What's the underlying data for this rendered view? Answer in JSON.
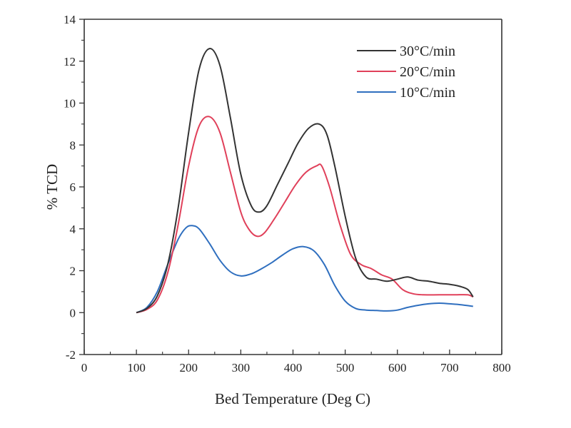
{
  "chart_data": {
    "type": "line",
    "title": "",
    "xlabel": "Bed Temperature (Deg C)",
    "ylabel": "% TCD",
    "xlim": [
      0,
      800
    ],
    "ylim": [
      -2,
      14
    ],
    "xticks": [
      0,
      100,
      200,
      300,
      400,
      500,
      600,
      700,
      800
    ],
    "yticks": [
      -2,
      0,
      2,
      4,
      6,
      8,
      10,
      12,
      14
    ],
    "xtick_labels": [
      "0",
      "100",
      "200",
      "300",
      "400",
      "500",
      "600",
      "700",
      "800"
    ],
    "ytick_labels": [
      "-2",
      "0",
      "2",
      "4",
      "6",
      "8",
      "10",
      "12",
      "14"
    ],
    "grid": false,
    "legend_position": "top-right",
    "series": [
      {
        "name": "30°C/min",
        "color": "#333333",
        "x": [
          100,
          120,
          140,
          160,
          180,
          200,
          220,
          240,
          260,
          280,
          300,
          320,
          335,
          350,
          370,
          390,
          410,
          430,
          450,
          465,
          480,
          500,
          520,
          540,
          560,
          580,
          600,
          620,
          640,
          660,
          680,
          700,
          720,
          735,
          745
        ],
        "y": [
          0,
          0.2,
          0.8,
          2.3,
          5.0,
          8.6,
          11.6,
          12.6,
          11.8,
          9.3,
          6.6,
          5.1,
          4.8,
          5.1,
          6.1,
          7.1,
          8.1,
          8.8,
          9.0,
          8.5,
          7.0,
          4.6,
          2.6,
          1.7,
          1.6,
          1.5,
          1.6,
          1.7,
          1.55,
          1.5,
          1.4,
          1.35,
          1.25,
          1.1,
          0.75
        ]
      },
      {
        "name": "20°C/min",
        "color": "#e0405a",
        "x": [
          100,
          120,
          140,
          160,
          180,
          200,
          220,
          240,
          260,
          280,
          300,
          315,
          330,
          345,
          365,
          385,
          405,
          425,
          445,
          455,
          470,
          490,
          510,
          530,
          550,
          570,
          590,
          610,
          630,
          650,
          680,
          710,
          735,
          745
        ],
        "y": [
          0,
          0.15,
          0.6,
          1.9,
          4.2,
          7.0,
          8.9,
          9.35,
          8.6,
          6.7,
          4.8,
          4.0,
          3.65,
          3.8,
          4.5,
          5.3,
          6.1,
          6.7,
          7.0,
          7.0,
          6.0,
          4.2,
          2.8,
          2.3,
          2.1,
          1.8,
          1.6,
          1.1,
          0.9,
          0.85,
          0.85,
          0.85,
          0.85,
          0.75
        ]
      },
      {
        "name": "10°C/min",
        "color": "#2f6fbf",
        "x": [
          100,
          120,
          140,
          160,
          180,
          195,
          207,
          220,
          240,
          260,
          280,
          300,
          320,
          340,
          360,
          380,
          400,
          420,
          440,
          460,
          480,
          500,
          520,
          540,
          560,
          580,
          600,
          620,
          640,
          660,
          680,
          700,
          720,
          745
        ],
        "y": [
          0,
          0.25,
          1.0,
          2.3,
          3.5,
          4.05,
          4.15,
          4.0,
          3.3,
          2.5,
          1.95,
          1.75,
          1.85,
          2.1,
          2.4,
          2.75,
          3.05,
          3.15,
          2.95,
          2.3,
          1.3,
          0.55,
          0.2,
          0.12,
          0.1,
          0.08,
          0.12,
          0.25,
          0.35,
          0.42,
          0.45,
          0.42,
          0.38,
          0.3
        ]
      }
    ]
  }
}
